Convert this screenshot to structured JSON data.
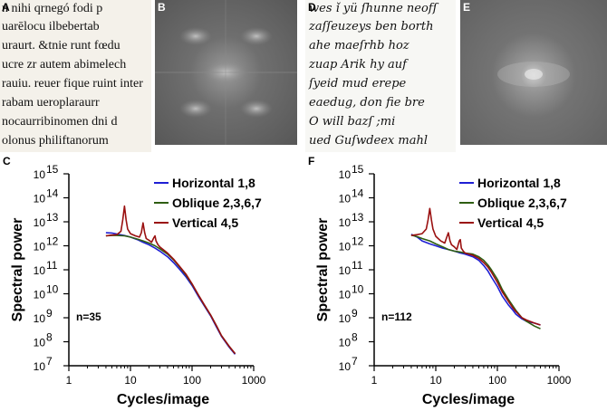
{
  "panels": {
    "a": "A",
    "b": "B",
    "c": "C",
    "d": "D",
    "e": "E",
    "f": "F"
  },
  "manuscript_lines": [
    "n nihi qrnegó fodi p",
    "uarēlocu ilbebertab",
    "uraurt. &tnie runt fœdu",
    "ucre zr autem abimelech",
    "rauiu. reuer fique ruint inter",
    "rabam ueroplaraurr",
    "nocaurribinomen dni d",
    "olonus philiftanorum"
  ],
  "handwriting_lines": [
    "wes ǐ yü ſhunne neofſ",
    "zaſſeuzeys ben borth",
    "ahe maeſrhb hoz",
    "zuap Arik hy auf",
    "ſyeid mud erepe",
    "eaedug, don fie bre",
    "O will bazſ ;mi",
    "ued Guſwdeex mahl"
  ],
  "colors": {
    "horizontal": "#1f1fd4",
    "oblique": "#2e5e12",
    "vertical": "#9a1010"
  },
  "chart_data": [
    {
      "id": "C",
      "type": "line",
      "title": "",
      "xlabel": "Cycles/image",
      "ylabel": "Spectral power",
      "xscale": "log",
      "yscale": "log",
      "xlim": [
        1,
        1000
      ],
      "ylim": [
        10000000,
        1000000000000000
      ],
      "xtick_labels": [
        "1",
        "10",
        "100",
        "1000"
      ],
      "ytick_exponents": [
        "7",
        "8",
        "9",
        "10",
        "11",
        "12",
        "13",
        "14",
        "15"
      ],
      "annotation": "n=35",
      "legend_position": "top-right",
      "series": [
        {
          "name": "Horizontal 1,8",
          "color": "#1f1fd4",
          "x": [
            4,
            5,
            6,
            8,
            10,
            13,
            16,
            20,
            25,
            30,
            40,
            50,
            60,
            80,
            100,
            130,
            160,
            200,
            250,
            300,
            400,
            500
          ],
          "y": [
            3500000000000.0,
            3400000000000.0,
            3100000000000.0,
            2700000000000.0,
            2300000000000.0,
            1800000000000.0,
            1400000000000.0,
            1100000000000.0,
            800000000000.0,
            600000000000.0,
            350000000000.0,
            200000000000.0,
            120000000000.0,
            50000000000.0,
            22000000000.0,
            7000000000.0,
            3000000000.0,
            1200000000.0,
            400000000.0,
            170000000.0,
            60000000.0,
            30000000.0
          ]
        },
        {
          "name": "Oblique 2,3,6,7",
          "color": "#2e5e12",
          "x": [
            4,
            5,
            6,
            8,
            10,
            13,
            16,
            20,
            25,
            30,
            40,
            50,
            60,
            80,
            100,
            130,
            160,
            200,
            250,
            300,
            400,
            500
          ],
          "y": [
            2600000000000.0,
            2700000000000.0,
            2700000000000.0,
            2600000000000.0,
            2300000000000.0,
            1900000000000.0,
            1600000000000.0,
            1300000000000.0,
            1000000000000.0,
            750000000000.0,
            450000000000.0,
            260000000000.0,
            150000000000.0,
            60000000000.0,
            25000000000.0,
            8000000000.0,
            3200000000.0,
            1300000000.0,
            450000000.0,
            180000000.0,
            65000000.0,
            32000000.0
          ]
        },
        {
          "name": "Vertical 4,5",
          "color": "#9a1010",
          "x": [
            4,
            5,
            6,
            7,
            7.5,
            8,
            8.5,
            9,
            10,
            12,
            14,
            15,
            16,
            17,
            18,
            20,
            22,
            24,
            25,
            26,
            28,
            30,
            40,
            50,
            60,
            80,
            100,
            130,
            160,
            200,
            250,
            300,
            400,
            500
          ],
          "y": [
            2600000000000.0,
            2800000000000.0,
            2900000000000.0,
            4000000000000.0,
            12000000000000.0,
            45000000000000.0,
            12000000000000.0,
            5000000000000.0,
            3200000000000.0,
            2600000000000.0,
            2300000000000.0,
            3500000000000.0,
            9000000000000.0,
            3500000000000.0,
            2000000000000.0,
            1700000000000.0,
            1400000000000.0,
            2200000000000.0,
            2600000000000.0,
            1600000000000.0,
            1100000000000.0,
            900000000000.0,
            500000000000.0,
            280000000000.0,
            160000000000.0,
            65000000000.0,
            26000000000.0,
            8000000000.0,
            3300000000.0,
            1300000000.0,
            450000000.0,
            180000000.0,
            65000000.0,
            32000000.0
          ]
        }
      ]
    },
    {
      "id": "F",
      "type": "line",
      "title": "",
      "xlabel": "Cycles/image",
      "ylabel": "Spectral power",
      "xscale": "log",
      "yscale": "log",
      "xlim": [
        1,
        1000
      ],
      "ylim": [
        10000000,
        1000000000000000
      ],
      "xtick_labels": [
        "1",
        "10",
        "100",
        "1000"
      ],
      "ytick_exponents": [
        "7",
        "8",
        "9",
        "10",
        "11",
        "12",
        "13",
        "14",
        "15"
      ],
      "annotation": "n=112",
      "legend_position": "top-right",
      "series": [
        {
          "name": "Horizontal 1,8",
          "color": "#1f1fd4",
          "x": [
            4,
            5,
            6,
            8,
            10,
            13,
            16,
            20,
            25,
            30,
            40,
            50,
            60,
            70,
            80,
            100,
            120,
            150,
            180,
            200,
            250,
            300,
            400,
            500
          ],
          "y": [
            3000000000000.0,
            2300000000000.0,
            1600000000000.0,
            1200000000000.0,
            1000000000000.0,
            800000000000.0,
            700000000000.0,
            600000000000.0,
            500000000000.0,
            450000000000.0,
            350000000000.0,
            250000000000.0,
            150000000000.0,
            90000000000.0,
            50000000000.0,
            20000000000.0,
            8000000000.0,
            3500000000.0,
            2000000000.0,
            1400000000.0,
            900000000.0,
            700000000.0,
            600000000.0,
            500000000.0
          ]
        },
        {
          "name": "Oblique 2,3,6,7",
          "color": "#2e5e12",
          "x": [
            4,
            5,
            6,
            8,
            10,
            13,
            16,
            20,
            25,
            30,
            40,
            50,
            60,
            70,
            80,
            100,
            120,
            150,
            180,
            200,
            250,
            300,
            400,
            500
          ],
          "y": [
            2800000000000.0,
            2400000000000.0,
            2000000000000.0,
            1600000000000.0,
            1200000000000.0,
            900000000000.0,
            700000000000.0,
            600000000000.0,
            550000000000.0,
            500000000000.0,
            450000000000.0,
            350000000000.0,
            250000000000.0,
            160000000000.0,
            100000000000.0,
            40000000000.0,
            15000000000.0,
            6000000000.0,
            3000000000.0,
            2000000000.0,
            1000000000.0,
            700000000.0,
            450000000.0,
            350000000.0
          ]
        },
        {
          "name": "Vertical 4,5",
          "color": "#9a1010",
          "x": [
            4,
            5,
            6,
            7,
            7.5,
            8,
            8.5,
            9,
            10,
            12,
            14,
            15,
            16,
            17,
            18,
            20,
            22,
            24,
            25,
            26,
            28,
            30,
            40,
            50,
            60,
            70,
            80,
            100,
            120,
            150,
            180,
            200,
            250,
            300,
            400,
            500
          ],
          "y": [
            2700000000000.0,
            2900000000000.0,
            3200000000000.0,
            5000000000000.0,
            12000000000000.0,
            36000000000000.0,
            12000000000000.0,
            5000000000000.0,
            2500000000000.0,
            1600000000000.0,
            1300000000000.0,
            2200000000000.0,
            3500000000000.0,
            1600000000000.0,
            1100000000000.0,
            900000000000.0,
            700000000000.0,
            1600000000000.0,
            1800000000000.0,
            800000000000.0,
            600000000000.0,
            500000000000.0,
            400000000000.0,
            300000000000.0,
            200000000000.0,
            130000000000.0,
            80000000000.0,
            30000000000.0,
            12000000000.0,
            5000000000.0,
            2500000000.0,
            1800000000.0,
            1000000000.0,
            800000000.0,
            600000000.0,
            500000000.0
          ]
        }
      ]
    }
  ]
}
